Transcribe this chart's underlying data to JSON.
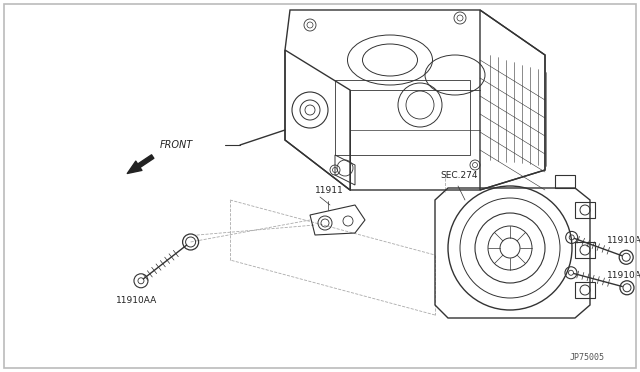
{
  "background_color": "#ffffff",
  "border_color": "#bbbbbb",
  "diagram_id": "JP75005",
  "labels": {
    "front_text": "FRONT",
    "sec274": "SEC.274",
    "part_11911": "11911",
    "part_11910AA": "11910AA",
    "part_11910A_upper": "11910A",
    "part_11910A_lower": "11910A"
  },
  "text_color": "#222222",
  "line_color": "#333333",
  "dashed_color": "#aaaaaa",
  "line_width": 0.8,
  "figsize": [
    6.4,
    3.72
  ],
  "dpi": 100
}
